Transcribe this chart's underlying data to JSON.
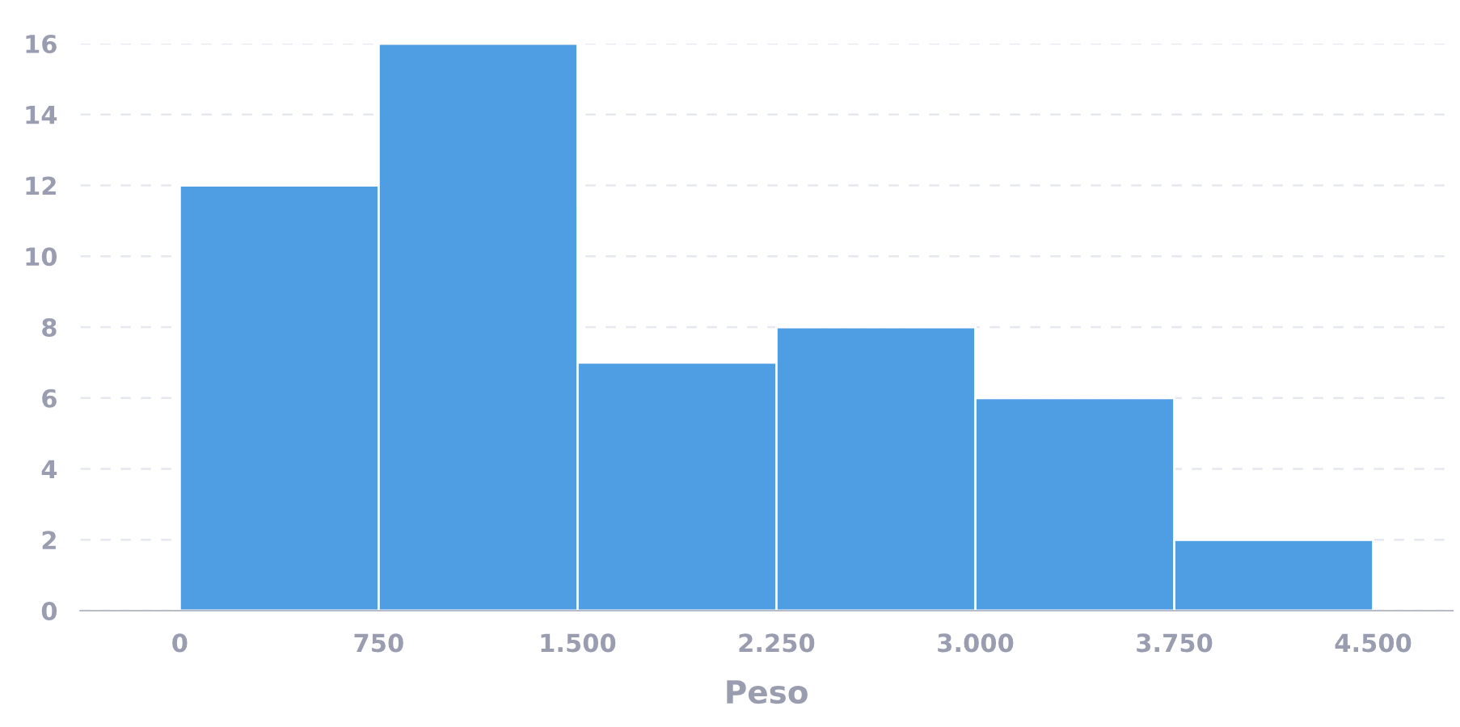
{
  "chart_data": {
    "type": "histogram",
    "xlabel": "Peso",
    "color": "#4f9de3",
    "bins": [
      0,
      750,
      1500,
      2250,
      3000,
      3750,
      4500
    ],
    "values": [
      12,
      16,
      7,
      8,
      6,
      2
    ],
    "xlim": [
      -375,
      4800
    ],
    "ylim": [
      0,
      16
    ],
    "xticks": [
      0,
      750,
      {
        "value": 1500,
        "label": "1.500"
      },
      {
        "value": 2250,
        "label": "2.250"
      },
      {
        "value": 3000,
        "label": "3.000"
      },
      {
        "value": 3750,
        "label": "3.750"
      },
      {
        "value": 4500,
        "label": "4.500"
      }
    ],
    "yticks": [
      0,
      2,
      4,
      6,
      8,
      10,
      12,
      14,
      16
    ],
    "grid": "y"
  }
}
